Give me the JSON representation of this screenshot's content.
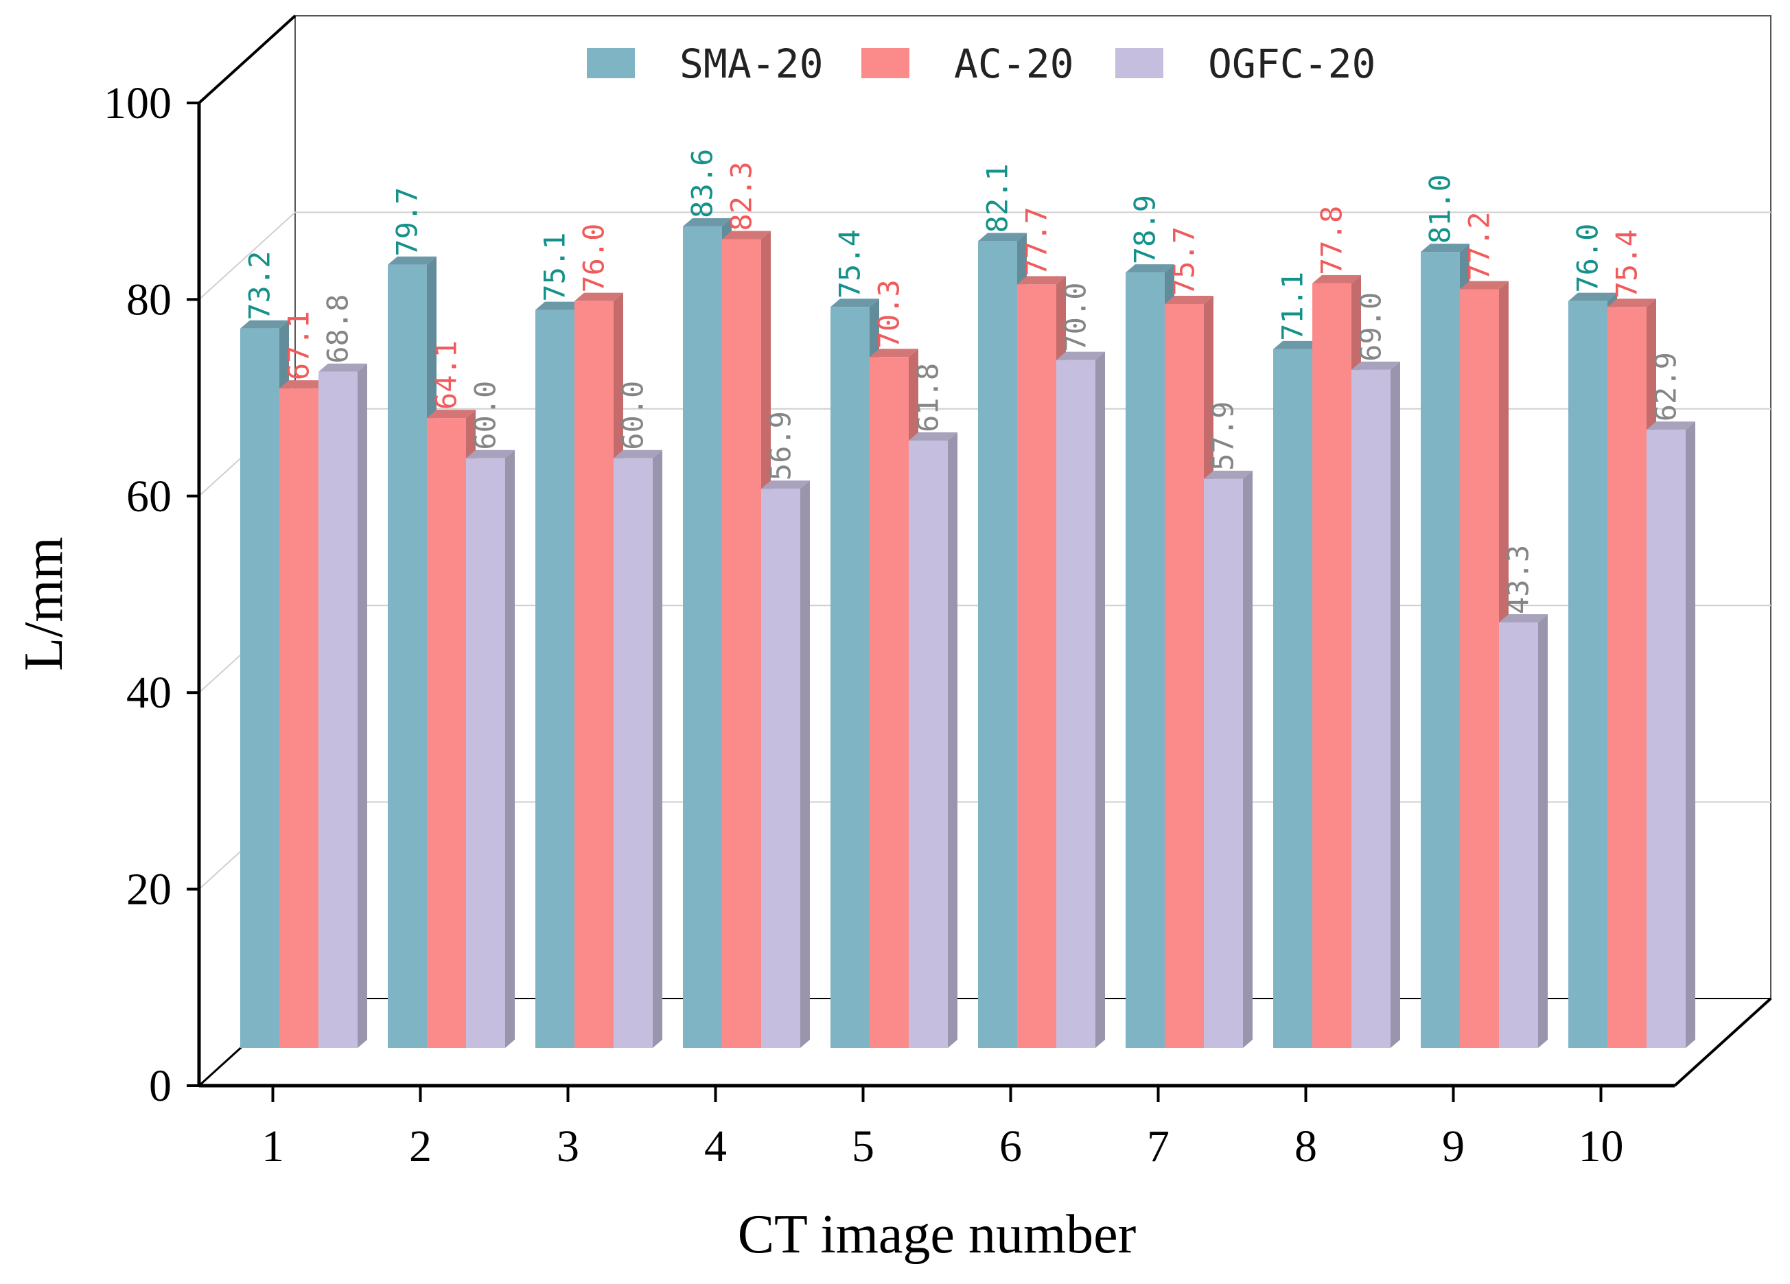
{
  "chart_data": {
    "type": "bar",
    "style": "3d-clustered",
    "title": "",
    "xlabel": "CT image number",
    "ylabel": "L/mm",
    "ylim": [
      0,
      100
    ],
    "yticks": [
      0,
      20,
      40,
      60,
      80,
      100
    ],
    "grid": true,
    "legend_position": "top",
    "categories": [
      "1",
      "2",
      "3",
      "4",
      "5",
      "6",
      "7",
      "8",
      "9",
      "10"
    ],
    "series": [
      {
        "name": "SMA-20",
        "color": "#7fb4c5",
        "label_color": "#13918a",
        "values": [
          73.2,
          79.7,
          75.1,
          83.6,
          75.4,
          82.1,
          78.9,
          71.1,
          81.0,
          76.0
        ],
        "labels": [
          "73.2",
          "79.7",
          "75.1",
          "83.6",
          "75.4",
          "82.1",
          "78.9",
          "71.1",
          "81.0",
          "76.0"
        ]
      },
      {
        "name": "AC-20",
        "color": "#fb8b8b",
        "label_color": "#f05a5a",
        "values": [
          67.1,
          64.1,
          76.0,
          82.3,
          70.3,
          77.7,
          75.7,
          77.8,
          77.2,
          75.4
        ],
        "labels": [
          "67.1",
          "64.1",
          "76.0",
          "82.3",
          "70.3",
          "77.7",
          "75.7",
          "77.8",
          "77.2",
          "75.4"
        ]
      },
      {
        "name": "OGFC-20",
        "color": "#c6bede",
        "label_color": "#858585",
        "values": [
          68.8,
          60.0,
          60.0,
          56.9,
          61.8,
          70.0,
          57.9,
          69.0,
          43.3,
          62.9
        ],
        "labels": [
          "68.8",
          "60.0",
          "60.0",
          "56.9",
          "61.8",
          "70.0",
          "57.9",
          "69.0",
          "43.3",
          "62.9"
        ]
      }
    ]
  }
}
